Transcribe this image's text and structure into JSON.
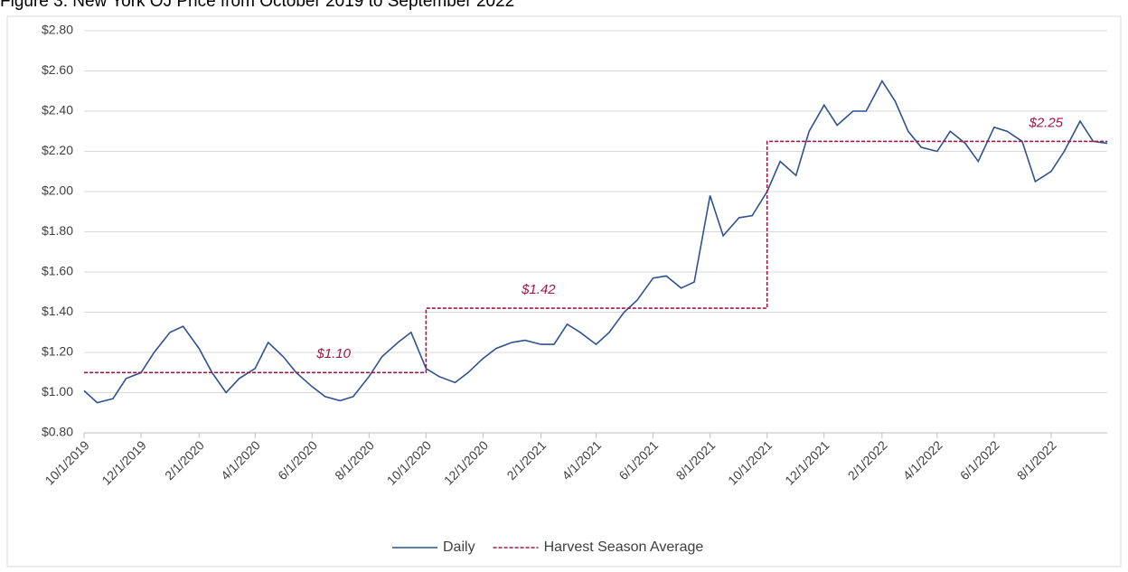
{
  "chart_data": {
    "type": "line",
    "title": "Figure 3. New York OJ Price from October 2019 to September 2022",
    "xlim": [
      "10/1/2019",
      "9/30/2022"
    ],
    "xticks": [
      "10/1/2019",
      "12/1/2019",
      "2/1/2020",
      "4/1/2020",
      "6/1/2020",
      "8/1/2020",
      "10/1/2020",
      "12/1/2020",
      "2/1/2021",
      "4/1/2021",
      "6/1/2021",
      "8/1/2021",
      "10/1/2021",
      "12/1/2021",
      "2/1/2022",
      "4/1/2022",
      "6/1/2022",
      "8/1/2022"
    ],
    "ylim": [
      0.8,
      2.8
    ],
    "yticks": [
      {
        "value": 0.8,
        "label": "$0.80"
      },
      {
        "value": 1.0,
        "label": "$1.00"
      },
      {
        "value": 1.2,
        "label": "$1.20"
      },
      {
        "value": 1.4,
        "label": "$1.40"
      },
      {
        "value": 1.6,
        "label": "$1.60"
      },
      {
        "value": 1.8,
        "label": "$1.80"
      },
      {
        "value": 2.0,
        "label": "$2.00"
      },
      {
        "value": 2.2,
        "label": "$2.20"
      },
      {
        "value": 2.4,
        "label": "$2.40"
      },
      {
        "value": 2.6,
        "label": "$2.60"
      },
      {
        "value": 2.8,
        "label": "$2.80"
      }
    ],
    "grid": true,
    "legend": "bottom",
    "series": [
      {
        "name": "Daily",
        "color": "#2f528f",
        "style": "solid",
        "x": [
          "10/1/2019",
          "10/15/2019",
          "11/1/2019",
          "11/15/2019",
          "12/1/2019",
          "12/15/2019",
          "1/1/2020",
          "1/15/2020",
          "2/1/2020",
          "2/15/2020",
          "3/1/2020",
          "3/15/2020",
          "4/1/2020",
          "4/15/2020",
          "5/1/2020",
          "5/15/2020",
          "6/1/2020",
          "6/15/2020",
          "7/1/2020",
          "7/15/2020",
          "8/1/2020",
          "8/15/2020",
          "9/1/2020",
          "9/15/2020",
          "10/1/2020",
          "10/15/2020",
          "11/1/2020",
          "11/15/2020",
          "12/1/2020",
          "12/15/2020",
          "1/1/2021",
          "1/15/2021",
          "2/1/2021",
          "2/15/2021",
          "3/1/2021",
          "3/15/2021",
          "4/1/2021",
          "4/15/2021",
          "5/1/2021",
          "5/15/2021",
          "6/1/2021",
          "6/15/2021",
          "7/1/2021",
          "7/15/2021",
          "8/1/2021",
          "8/15/2021",
          "9/1/2021",
          "9/15/2021",
          "10/1/2021",
          "10/15/2021",
          "11/1/2021",
          "11/15/2021",
          "12/1/2021",
          "12/15/2021",
          "1/1/2022",
          "1/15/2022",
          "2/1/2022",
          "2/15/2022",
          "3/1/2022",
          "3/15/2022",
          "4/1/2022",
          "4/15/2022",
          "5/1/2022",
          "5/15/2022",
          "6/1/2022",
          "6/15/2022",
          "7/1/2022",
          "7/15/2022",
          "8/1/2022",
          "8/15/2022",
          "9/1/2022",
          "9/15/2022",
          "9/30/2022"
        ],
        "values": [
          1.01,
          0.95,
          0.97,
          1.07,
          1.1,
          1.2,
          1.3,
          1.33,
          1.22,
          1.1,
          1.0,
          1.07,
          1.12,
          1.25,
          1.18,
          1.1,
          1.03,
          0.98,
          0.96,
          0.98,
          1.08,
          1.18,
          1.25,
          1.3,
          1.12,
          1.08,
          1.05,
          1.1,
          1.17,
          1.22,
          1.25,
          1.26,
          1.24,
          1.24,
          1.34,
          1.3,
          1.24,
          1.3,
          1.4,
          1.46,
          1.57,
          1.58,
          1.52,
          1.55,
          1.98,
          1.78,
          1.87,
          1.88,
          2.0,
          2.15,
          2.08,
          2.3,
          2.43,
          2.33,
          2.4,
          2.4,
          2.55,
          2.45,
          2.3,
          2.22,
          2.2,
          2.3,
          2.24,
          2.15,
          2.32,
          2.3,
          2.25,
          2.05,
          2.1,
          2.2,
          2.35,
          2.25,
          2.24
        ]
      },
      {
        "name": "Harvest Season Average",
        "color": "#a01848",
        "style": "dashed",
        "x": [
          "10/1/2019",
          "10/1/2020",
          "10/1/2020",
          "10/1/2021",
          "10/1/2021",
          "9/30/2022"
        ],
        "values": [
          1.1,
          1.1,
          1.42,
          1.42,
          2.25,
          2.25
        ],
        "value_labels": [
          null,
          "$1.10",
          null,
          "$1.42",
          null,
          "$2.25"
        ]
      }
    ]
  }
}
